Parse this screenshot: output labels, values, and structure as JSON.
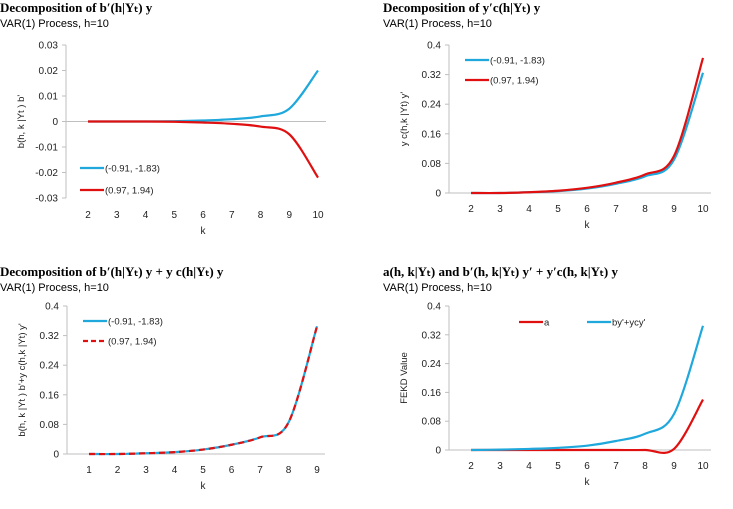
{
  "chart_data": [
    {
      "type": "line",
      "title": "Decomposition of b′(h|Yₜ) y",
      "subtitle": "VAR(1) Process, h=10",
      "xlabel": "k",
      "ylabel": "b(h, k |Yt ) b'",
      "x": [
        2,
        3,
        4,
        5,
        6,
        7,
        8,
        9,
        10
      ],
      "ylim": [
        -0.03,
        0.03
      ],
      "yticks": [
        "0.03",
        "0.02",
        "0.01",
        "0",
        "-0.01",
        "-0.02",
        "-0.03"
      ],
      "ytick_values": [
        0.03,
        0.02,
        0.01,
        0,
        -0.01,
        -0.02,
        -0.03
      ],
      "legend_position": "bottom-left",
      "series": [
        {
          "name": "(-0.91, -1.83)",
          "color": "#1fa8dc",
          "dash": "solid",
          "values": [
            0,
            0,
            0,
            0.0001,
            0.0004,
            0.0009,
            0.002,
            0.005,
            0.02
          ]
        },
        {
          "name": "(0.97, 1.94)",
          "color": "#e01010",
          "dash": "solid",
          "values": [
            0,
            0,
            0,
            -0.0001,
            -0.0004,
            -0.0009,
            -0.002,
            -0.005,
            -0.022
          ]
        }
      ]
    },
    {
      "type": "line",
      "title": "Decomposition of y′c(h|Yₜ) y",
      "subtitle": "VAR(1) Process, h=10",
      "xlabel": "k",
      "ylabel": "y c(h,k |Yt) y'",
      "x": [
        2,
        3,
        4,
        5,
        6,
        7,
        8,
        9,
        10
      ],
      "ylim": [
        0,
        0.4
      ],
      "yticks": [
        "0.4",
        "0.32",
        "0.24",
        "0.16",
        "0.08",
        "0"
      ],
      "ytick_values": [
        0.4,
        0.32,
        0.24,
        0.16,
        0.08,
        0
      ],
      "legend_position": "top-left",
      "series": [
        {
          "name": "(-0.91, -1.83)",
          "color": "#1fa8dc",
          "dash": "solid",
          "values": [
            0,
            0,
            0.002,
            0.005,
            0.012,
            0.025,
            0.045,
            0.09,
            0.325
          ]
        },
        {
          "name": "(0.97, 1.94)",
          "color": "#e01010",
          "dash": "solid",
          "values": [
            0,
            0,
            0.002,
            0.006,
            0.014,
            0.028,
            0.05,
            0.1,
            0.365
          ]
        }
      ]
    },
    {
      "type": "line",
      "title": "Decomposition of b′(h|Yₜ) y + y c(h|Yₜ) y",
      "subtitle": "VAR(1) Process, h=10",
      "xlabel": "k",
      "ylabel": "b(h, k |Yt ) b'+y c(h,k |Yt) y'",
      "x": [
        1,
        2,
        3,
        4,
        5,
        6,
        7,
        8,
        9
      ],
      "ylim": [
        0,
        0.4
      ],
      "yticks": [
        "0.4",
        "0.32",
        "0.24",
        "0.16",
        "0.08",
        "0"
      ],
      "ytick_values": [
        0.4,
        0.32,
        0.24,
        0.16,
        0.08,
        0
      ],
      "legend_position": "top-left",
      "series": [
        {
          "name": "(-0.91, -1.83)",
          "color": "#1fa8dc",
          "dash": "solid",
          "values": [
            0,
            0,
            0.002,
            0.005,
            0.012,
            0.025,
            0.045,
            0.085,
            0.345
          ]
        },
        {
          "name": "(0.97, 1.94)",
          "color": "#e01010",
          "dash": "dashed",
          "values": [
            0,
            0,
            0.002,
            0.005,
            0.012,
            0.025,
            0.045,
            0.085,
            0.345
          ]
        }
      ]
    },
    {
      "type": "line",
      "title": "a(h, k|Yₜ) and b′(h, k|Yₜ) y′ + y′c(h, k|Yₜ) y",
      "subtitle": "VAR(1) Process, h=10",
      "xlabel": "k",
      "ylabel": "FEKD Value",
      "x": [
        2,
        3,
        4,
        5,
        6,
        7,
        8,
        9,
        10
      ],
      "ylim": [
        0,
        0.4
      ],
      "yticks": [
        "0.4",
        "0.32",
        "0.24",
        "0.16",
        "0.08",
        "0"
      ],
      "ytick_values": [
        0.4,
        0.32,
        0.24,
        0.16,
        0.08,
        0
      ],
      "legend_position": "top",
      "series": [
        {
          "name": "a",
          "color": "#e01010",
          "dash": "solid",
          "values": [
            0,
            0,
            0,
            0,
            0,
            0,
            0,
            0.003,
            0.14
          ]
        },
        {
          "name": "by'+ycy'",
          "color": "#1fa8dc",
          "dash": "solid",
          "values": [
            0,
            0.001,
            0.003,
            0.006,
            0.012,
            0.025,
            0.045,
            0.1,
            0.345
          ]
        }
      ]
    }
  ]
}
